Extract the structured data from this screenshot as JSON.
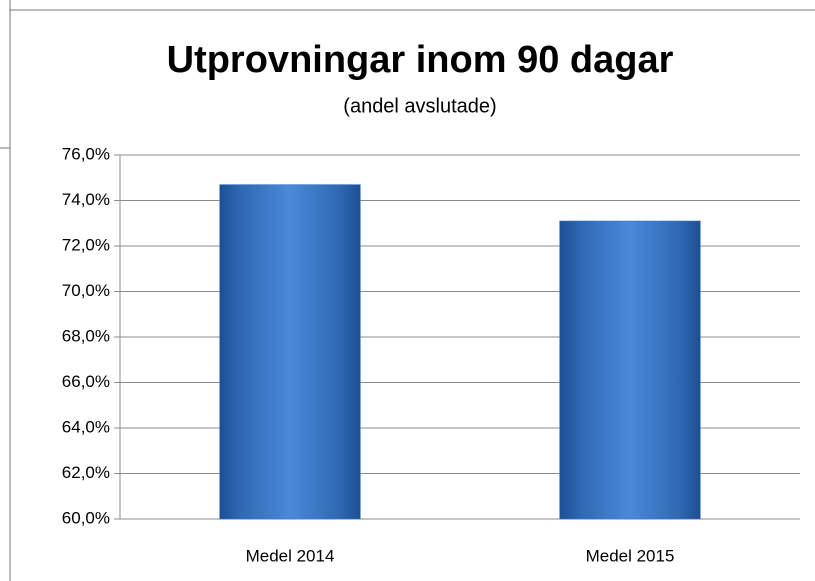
{
  "chart_data": {
    "type": "bar",
    "title": "Utprovningar inom 90 dagar",
    "subtitle": "(andel avslutade)",
    "categories": [
      "Medel 2014",
      "Medel 2015"
    ],
    "values": [
      74.7,
      73.1
    ],
    "color": "#3a78c8",
    "ylim": [
      60,
      76
    ],
    "yticks": [
      {
        "value": 60,
        "label": "60,0%"
      },
      {
        "value": 62,
        "label": "62,0%"
      },
      {
        "value": 64,
        "label": "64,0%"
      },
      {
        "value": 66,
        "label": "66,0%"
      },
      {
        "value": 68,
        "label": "68,0%"
      },
      {
        "value": 70,
        "label": "70,0%"
      },
      {
        "value": 72,
        "label": "72,0%"
      },
      {
        "value": 74,
        "label": "74,0%"
      },
      {
        "value": 76,
        "label": "76,0%"
      }
    ],
    "grid": true
  }
}
